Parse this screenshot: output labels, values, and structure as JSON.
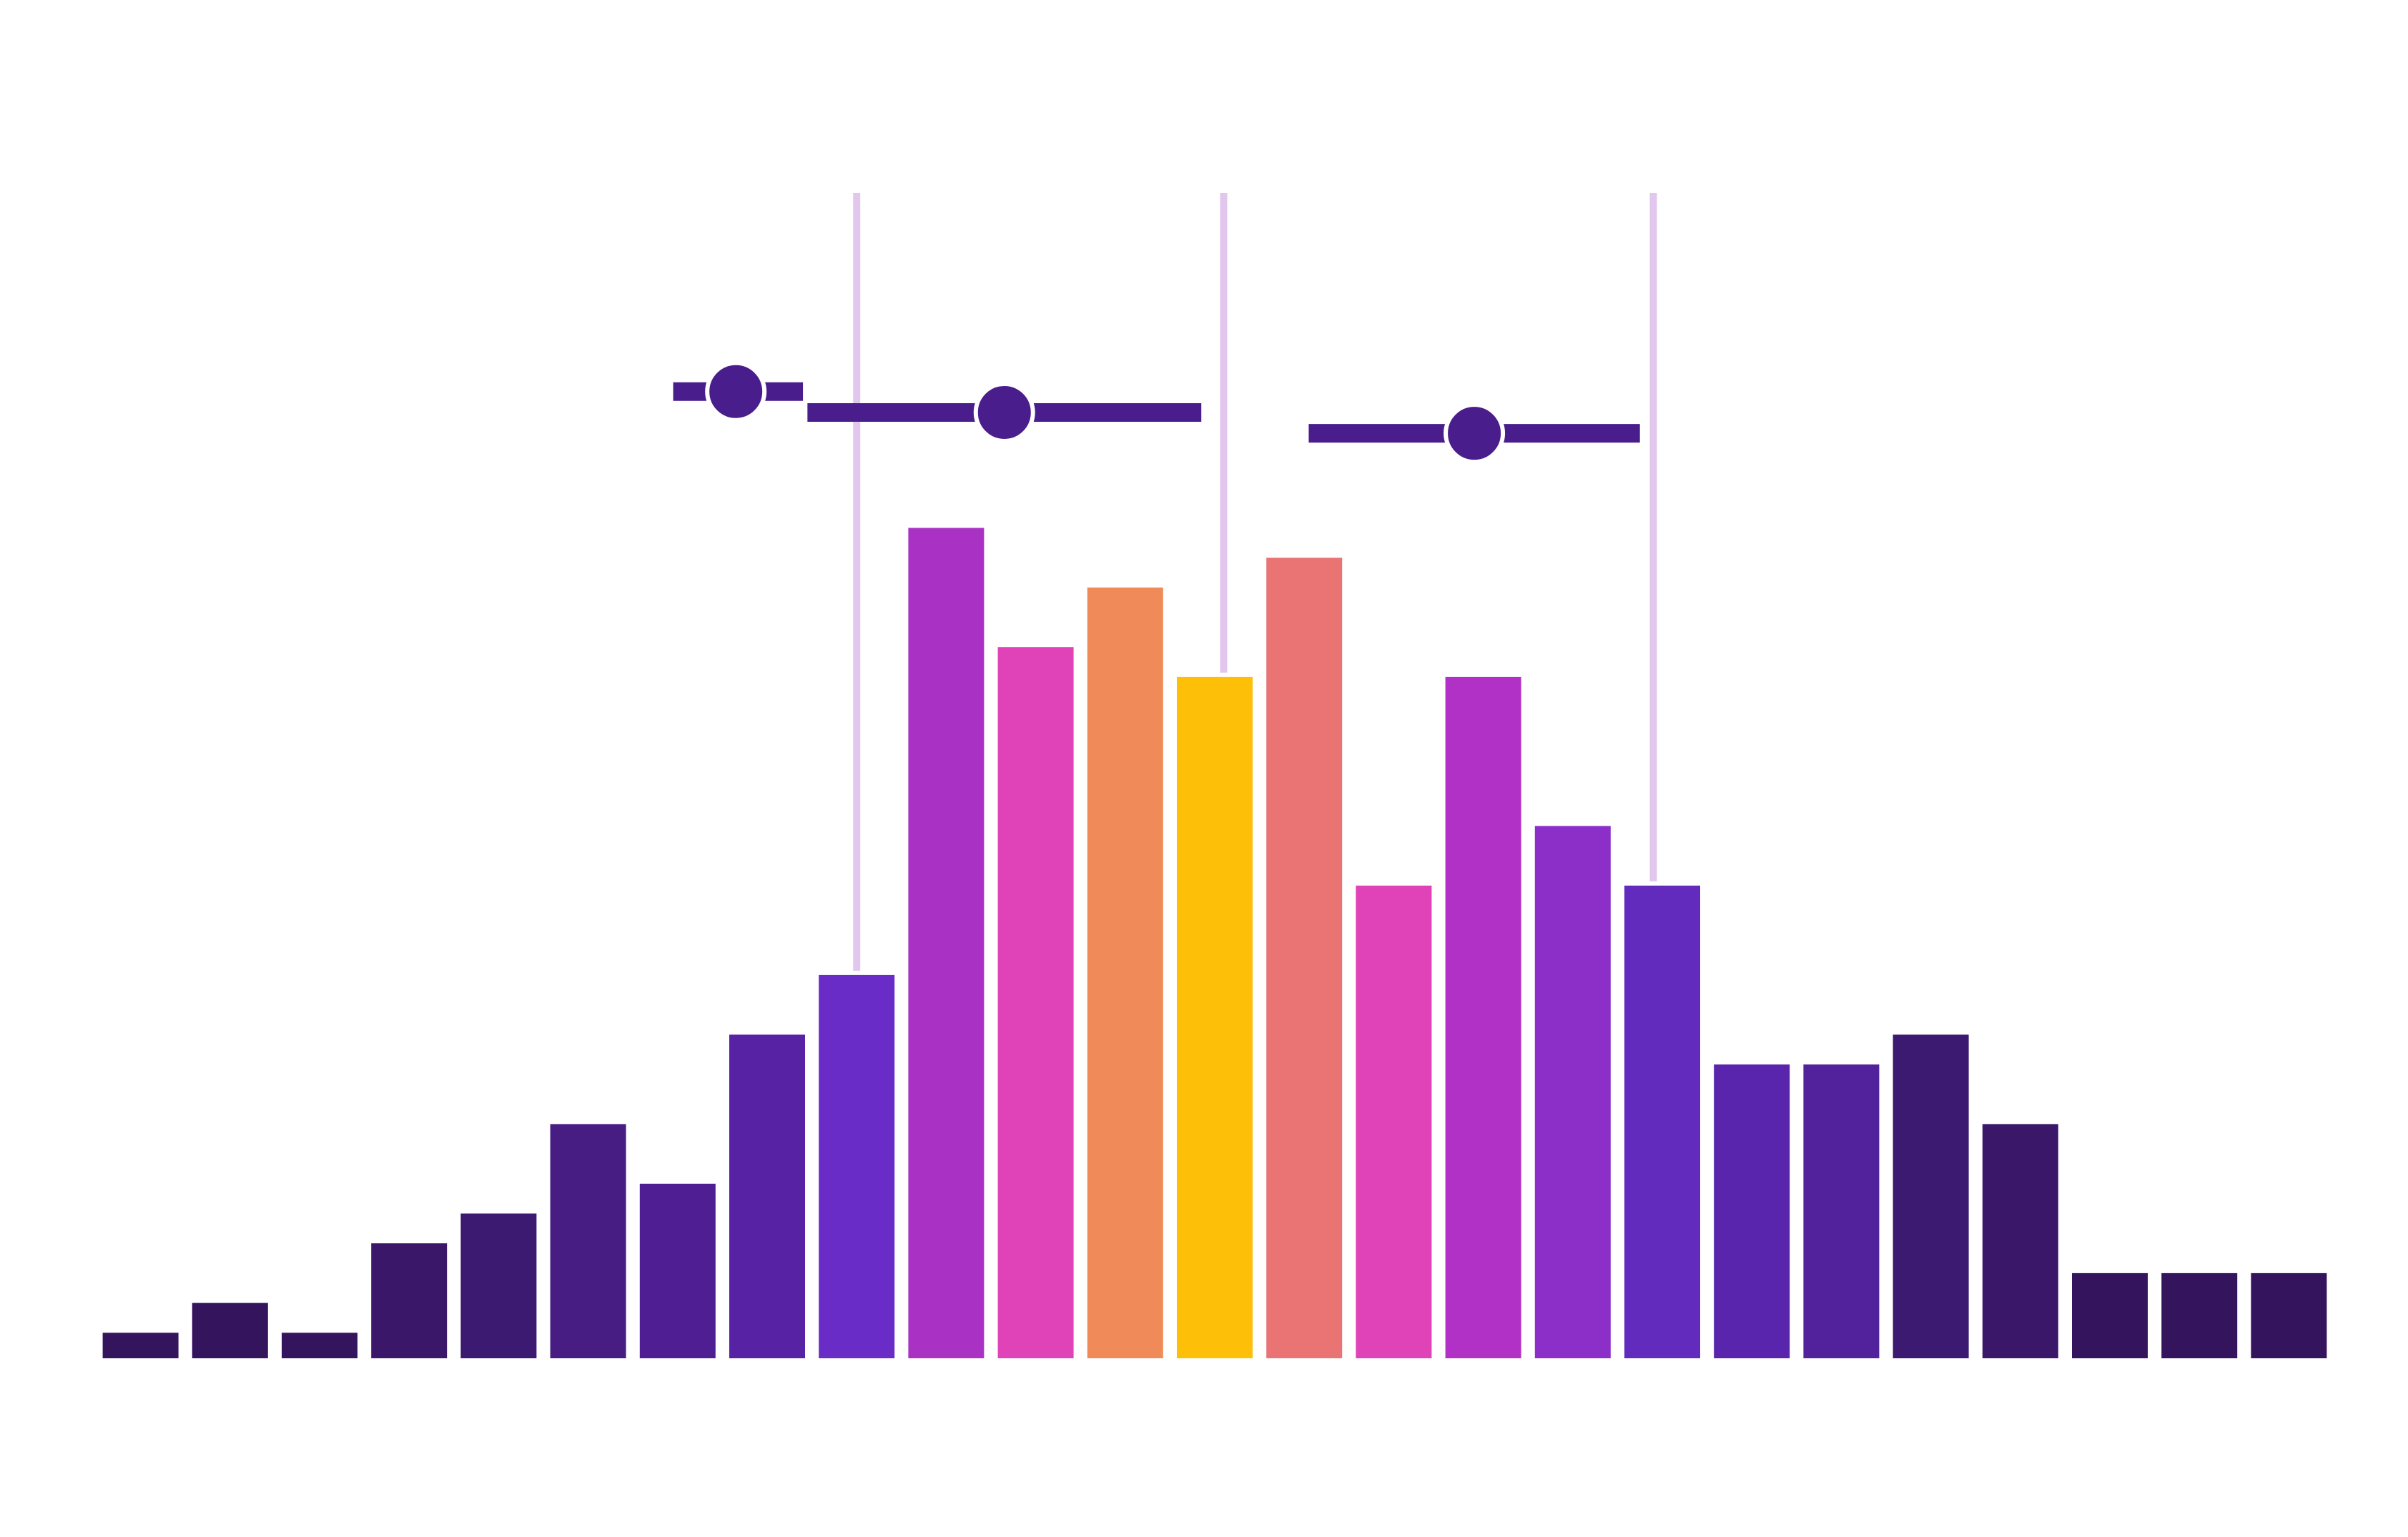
{
  "chart_data": {
    "type": "bar",
    "title": "",
    "xlabel": "",
    "ylabel": "",
    "grid": false,
    "legend": false,
    "bar_values": [
      1,
      2,
      1,
      4,
      5,
      8,
      6,
      11,
      13,
      28,
      24,
      26,
      23,
      27,
      16,
      23,
      18,
      16,
      10,
      10,
      11,
      8,
      3,
      3,
      3
    ],
    "bar_colors": [
      "#35145e",
      "#35145e",
      "#35145e",
      "#3a1768",
      "#3d1a72",
      "#471d84",
      "#4f1e93",
      "#5722a3",
      "#6a2cc6",
      "#a932c4",
      "#e042b8",
      "#f08a58",
      "#fdbf07",
      "#ea7474",
      "#e042b8",
      "#b131c6",
      "#8c2fc8",
      "#622bbe",
      "#5a25ad",
      "#52219c",
      "#3d1a72",
      "#3a1768",
      "#35145e",
      "#35145e",
      "#35145e"
    ],
    "ylim": [
      0,
      32
    ],
    "reference_lines": {
      "color": "#e2c6ee",
      "positions": [
        8.5,
        12.6,
        17.4
      ]
    },
    "intervals": {
      "color": "#4a1d8c",
      "items": [
        {
          "center": 7.15,
          "low": 6.45,
          "high": 7.9,
          "y": 32.5
        },
        {
          "center": 10.15,
          "low": 7.95,
          "high": 12.35,
          "y": 31.8
        },
        {
          "center": 15.4,
          "low": 13.55,
          "high": 17.25,
          "y": 31.1
        }
      ]
    }
  }
}
